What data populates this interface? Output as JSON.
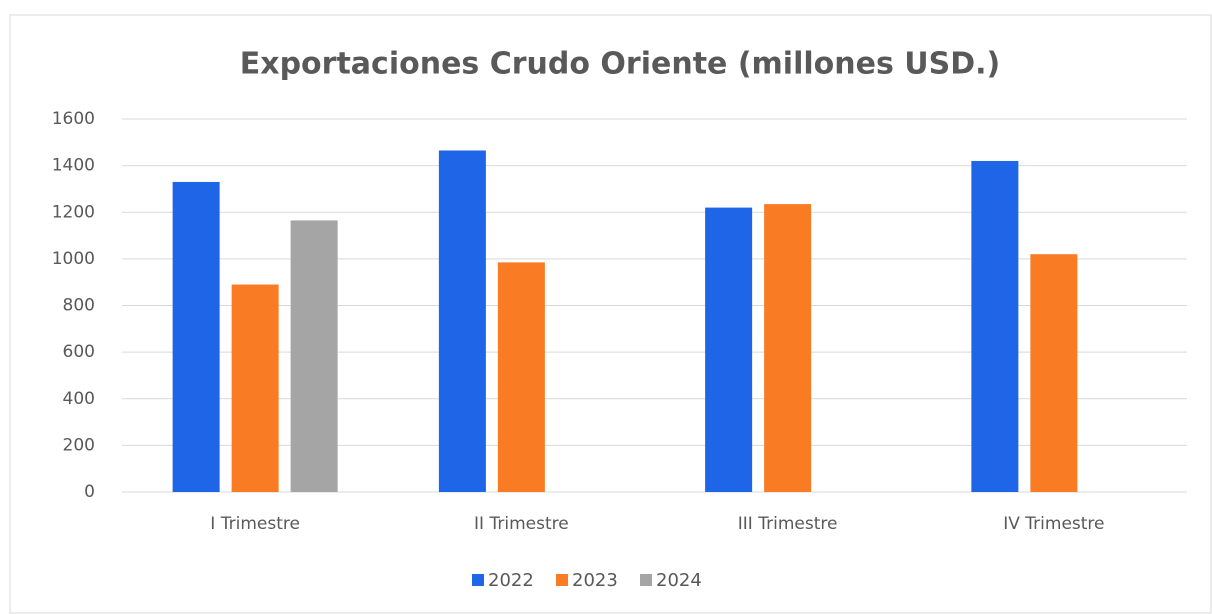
{
  "chart_data": {
    "type": "bar",
    "title": "Exportaciones Crudo Oriente (millones USD.)",
    "categories": [
      "I Trimestre",
      "II Trimestre",
      "III Trimestre",
      "IV Trimestre"
    ],
    "series": [
      {
        "name": "2022",
        "color": "#1f65e8",
        "values": [
          1330,
          1465,
          1220,
          1420
        ]
      },
      {
        "name": "2023",
        "color": "#f97b23",
        "values": [
          890,
          985,
          1235,
          1020
        ]
      },
      {
        "name": "2024",
        "color": "#a5a5a5",
        "values": [
          1165,
          null,
          null,
          null
        ]
      }
    ],
    "ylim": [
      0,
      1600
    ],
    "yticks": [
      0,
      200,
      400,
      600,
      800,
      1000,
      1200,
      1400,
      1600
    ],
    "grid": true,
    "legend": "bottom"
  }
}
